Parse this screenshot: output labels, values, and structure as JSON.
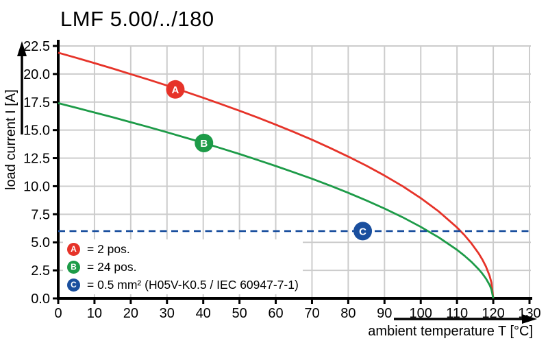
{
  "title": "LMF 5.00/../180",
  "chart_data": {
    "type": "line",
    "title": "LMF 5.00/../180",
    "xlabel": "ambient temperature T [°C]",
    "ylabel": "load current I [A]",
    "xlim": [
      0,
      130
    ],
    "ylim": [
      0,
      22.5
    ],
    "x_ticks": [
      0,
      10,
      20,
      30,
      40,
      50,
      60,
      70,
      80,
      90,
      100,
      110,
      120,
      130
    ],
    "y_ticks": [
      0.0,
      2.5,
      5.0,
      7.5,
      10.0,
      12.5,
      15.0,
      17.5,
      20.0,
      22.5
    ],
    "grid": true,
    "legend_position": "bottom-left-inside",
    "series": [
      {
        "name": "A",
        "label": "2 pos.",
        "color": "#e63329",
        "style": "solid",
        "points": [
          [
            0,
            21.9
          ],
          [
            5,
            21.44
          ],
          [
            10,
            20.97
          ],
          [
            15,
            20.49
          ],
          [
            20,
            19.99
          ],
          [
            25,
            19.49
          ],
          [
            30,
            18.97
          ],
          [
            35,
            18.43
          ],
          [
            40,
            17.88
          ],
          [
            45,
            17.31
          ],
          [
            50,
            16.73
          ],
          [
            55,
            16.12
          ],
          [
            60,
            15.49
          ],
          [
            65,
            14.83
          ],
          [
            70,
            14.14
          ],
          [
            75,
            13.41
          ],
          [
            80,
            12.64
          ],
          [
            85,
            11.83
          ],
          [
            90,
            10.95
          ],
          [
            95,
            10.0
          ],
          [
            100,
            8.94
          ],
          [
            105,
            7.74
          ],
          [
            110,
            6.32
          ],
          [
            112,
            5.66
          ],
          [
            114,
            4.9
          ],
          [
            116,
            4.0
          ],
          [
            117,
            3.46
          ],
          [
            118,
            2.83
          ],
          [
            119,
            2.0
          ],
          [
            119.5,
            1.41
          ],
          [
            120,
            0
          ]
        ]
      },
      {
        "name": "B",
        "label": "24 pos.",
        "color": "#1d9b48",
        "style": "solid",
        "points": [
          [
            0,
            17.4
          ],
          [
            5,
            16.99
          ],
          [
            10,
            16.57
          ],
          [
            15,
            16.15
          ],
          [
            20,
            15.71
          ],
          [
            25,
            15.27
          ],
          [
            30,
            14.81
          ],
          [
            35,
            14.34
          ],
          [
            40,
            13.87
          ],
          [
            45,
            13.37
          ],
          [
            50,
            12.87
          ],
          [
            55,
            12.34
          ],
          [
            60,
            11.8
          ],
          [
            65,
            11.24
          ],
          [
            70,
            10.66
          ],
          [
            75,
            10.05
          ],
          [
            80,
            9.41
          ],
          [
            85,
            8.73
          ],
          [
            90,
            8.01
          ],
          [
            95,
            7.23
          ],
          [
            100,
            6.38
          ],
          [
            105,
            5.43
          ],
          [
            110,
            4.33
          ],
          [
            112,
            3.82
          ],
          [
            114,
            3.25
          ],
          [
            116,
            2.59
          ],
          [
            117,
            2.21
          ],
          [
            118,
            1.76
          ],
          [
            119,
            1.19
          ],
          [
            119.5,
            0.81
          ],
          [
            120,
            0
          ]
        ]
      },
      {
        "name": "C",
        "label": "0.5 mm² (H05V-K0.5 / IEC 60947-7-1)",
        "color": "#1a4f9e",
        "style": "dashed",
        "points": [
          [
            0,
            6.0
          ],
          [
            130,
            6.0
          ]
        ]
      }
    ],
    "markers": [
      {
        "letter": "A",
        "x": 32.3,
        "y": 18.63,
        "color": "#e63329"
      },
      {
        "letter": "B",
        "x": 40.2,
        "y": 13.85,
        "color": "#1d9b48"
      },
      {
        "letter": "C",
        "x": 84.0,
        "y": 6.0,
        "color": "#1a4f9e"
      }
    ]
  },
  "legend": {
    "items": [
      {
        "letter": "A",
        "label": "= 2 pos.",
        "color": "#e63329"
      },
      {
        "letter": "B",
        "label": "= 24 pos.",
        "color": "#1d9b48"
      },
      {
        "letter": "C",
        "label": "= 0.5 mm² (H05V-K0.5 / IEC 60947-7-1)",
        "color": "#1a4f9e"
      }
    ]
  },
  "colors": {
    "curve_a": "#e63329",
    "curve_b": "#1d9b48",
    "limit_line": "#1a4f9e",
    "grid": "#cccccc",
    "axis": "#000000",
    "background": "#ffffff"
  }
}
